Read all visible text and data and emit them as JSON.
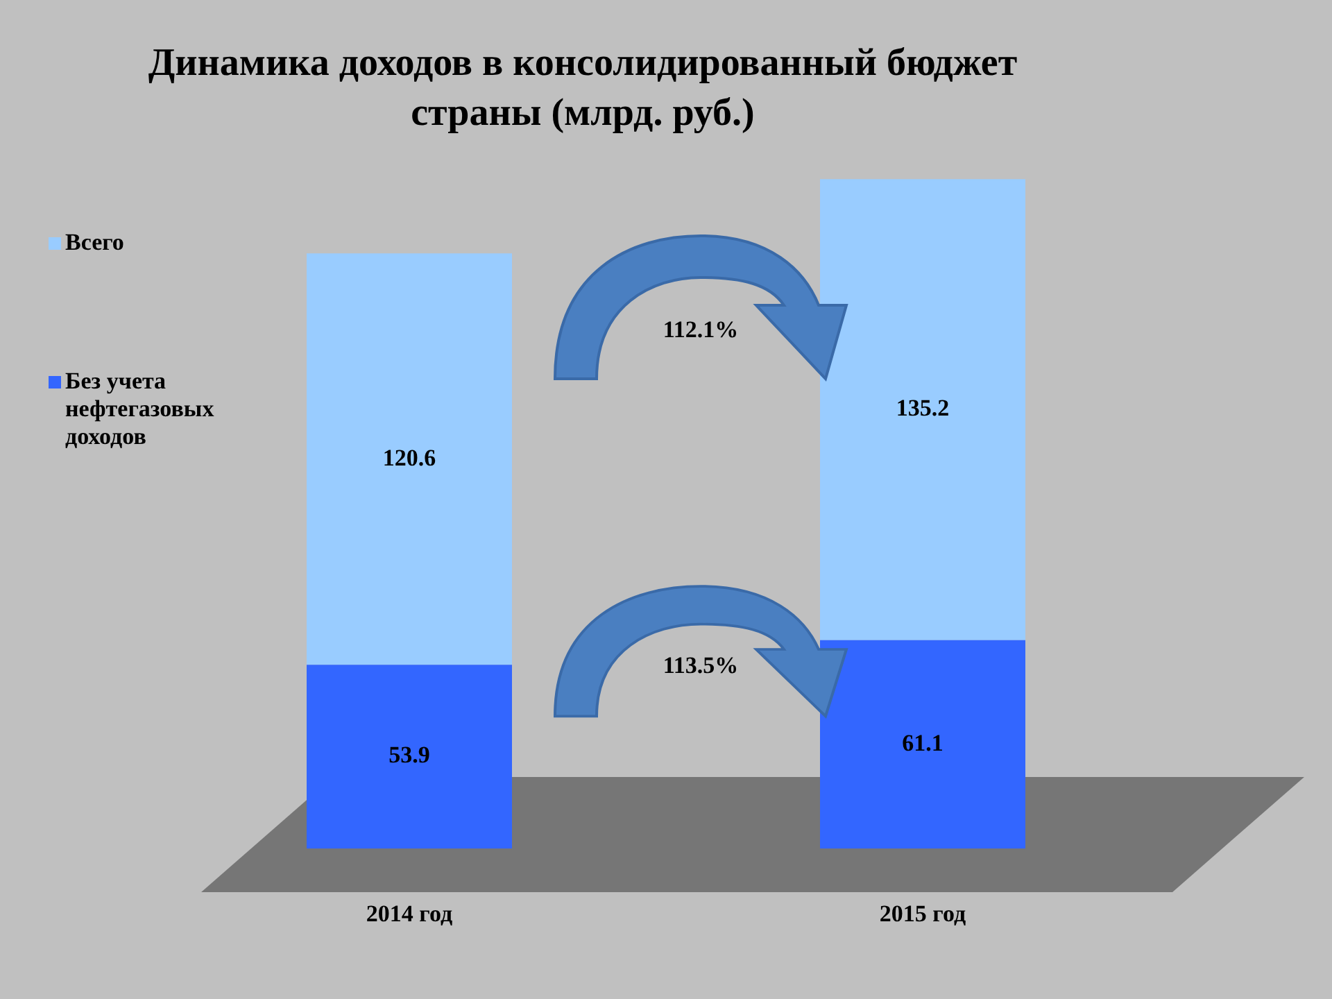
{
  "chart_data": {
    "type": "bar",
    "title": "Динамика доходов в консолидированный бюджет страны (млрд. руб.)",
    "categories": [
      "2014 год",
      "2015 год"
    ],
    "stacked": true,
    "data_labels": true,
    "legend": "left",
    "series": [
      {
        "name": "Без учета нефтегазовых доходов",
        "color": "#3366ff",
        "values": [
          53.9,
          61.1
        ]
      },
      {
        "name": "Всего",
        "color": "#99ccff",
        "values": [
          120.6,
          135.2
        ]
      }
    ],
    "annotations": [
      "112.1%",
      "113.5%"
    ]
  }
}
